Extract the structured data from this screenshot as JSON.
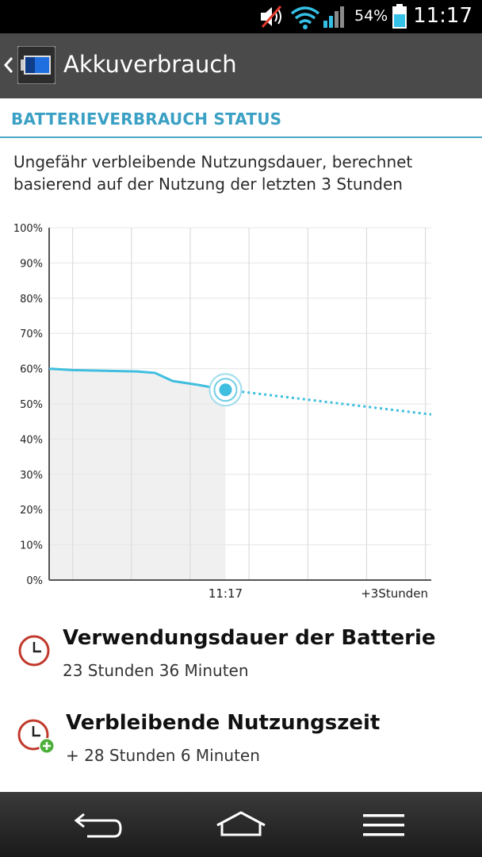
{
  "status_bar": {
    "battery_percent": "54%",
    "time": "11:17",
    "icons": [
      "mute-icon",
      "wifi-icon",
      "signal-icon",
      "battery-charging-icon"
    ]
  },
  "action_bar": {
    "title": "Akkuverbrauch"
  },
  "section": {
    "header": "BATTERIEVERBRAUCH STATUS",
    "description": "Ungefähr verbleibende Nutzungsdauer, berechnet basierend auf der Nutzung der letzten 3 Stunden"
  },
  "chart_data": {
    "type": "line",
    "title": "",
    "xlabel": "",
    "ylabel": "",
    "ylim": [
      0,
      100
    ],
    "yticks": [
      "100%",
      "90%",
      "80%",
      "70%",
      "60%",
      "50%",
      "40%",
      "30%",
      "20%",
      "10%",
      "0%"
    ],
    "xticks": [
      "11:17",
      "+3Stunden"
    ],
    "grid": true,
    "x_range_hours": [
      -3,
      3.5
    ],
    "series": [
      {
        "style": "solid",
        "points": [
          [
            -3,
            60
          ],
          [
            -2.6,
            59.6
          ],
          [
            -1.5,
            59.2
          ],
          [
            -1.2,
            58.8
          ],
          [
            -0.9,
            56.5
          ],
          [
            -0.5,
            55.5
          ],
          [
            0,
            54
          ]
        ]
      },
      {
        "style": "dotted",
        "points": [
          [
            0,
            54
          ],
          [
            3.5,
            47
          ]
        ]
      }
    ],
    "current_marker": {
      "x": 0,
      "y": 54
    },
    "accent_color": "#3fbedf"
  },
  "usage": {
    "battery_usage_label": "Verwendungsdauer der Batterie",
    "battery_usage_value": "23 Stunden 36 Minuten",
    "remaining_label": "Verbleibende Nutzungszeit",
    "remaining_value": "+ 28 Stunden 6 Minuten"
  },
  "nav_bar": {
    "buttons": [
      "back-icon",
      "home-icon",
      "menu-icon"
    ]
  }
}
